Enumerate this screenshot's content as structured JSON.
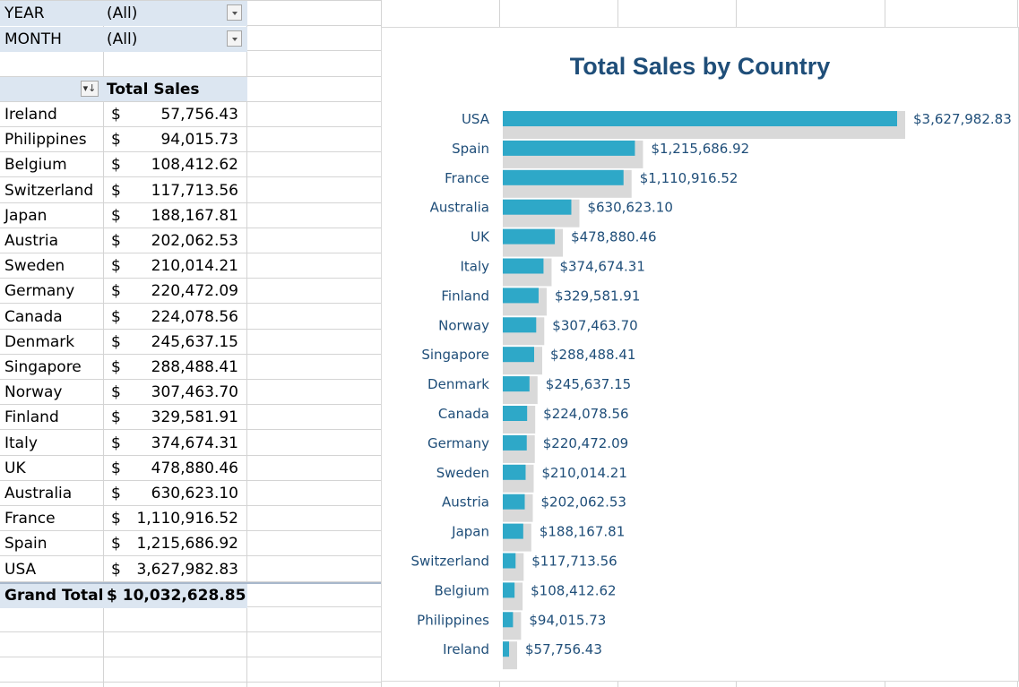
{
  "filters": [
    {
      "label": "YEAR",
      "value": "(All)"
    },
    {
      "label": "MONTH",
      "value": "(All)"
    }
  ],
  "pivot": {
    "header": "Total Sales",
    "sort_icon": "sort-filter-icon",
    "currency": "$",
    "rows": [
      {
        "country": "Ireland",
        "amount": "57,756.43"
      },
      {
        "country": "Philippines",
        "amount": "94,015.73"
      },
      {
        "country": "Belgium",
        "amount": "108,412.62"
      },
      {
        "country": "Switzerland",
        "amount": "117,713.56"
      },
      {
        "country": "Japan",
        "amount": "188,167.81"
      },
      {
        "country": "Austria",
        "amount": "202,062.53"
      },
      {
        "country": "Sweden",
        "amount": "210,014.21"
      },
      {
        "country": "Germany",
        "amount": "220,472.09"
      },
      {
        "country": "Canada",
        "amount": "224,078.56"
      },
      {
        "country": "Denmark",
        "amount": "245,637.15"
      },
      {
        "country": "Singapore",
        "amount": "288,488.41"
      },
      {
        "country": "Norway",
        "amount": "307,463.70"
      },
      {
        "country": "Finland",
        "amount": "329,581.91"
      },
      {
        "country": "Italy",
        "amount": "374,674.31"
      },
      {
        "country": "UK",
        "amount": "478,880.46"
      },
      {
        "country": "Australia",
        "amount": "630,623.10"
      },
      {
        "country": "France",
        "amount": "1,110,916.52"
      },
      {
        "country": "Spain",
        "amount": "1,215,686.92"
      },
      {
        "country": "USA",
        "amount": "3,627,982.83"
      }
    ],
    "grand_total_label": "Grand Total",
    "grand_total_value": "$ 10,032,628.85"
  },
  "colors": {
    "bar": "#2ea8c8",
    "bar_shadow": "#d9d9d9",
    "label_text": "#1f4e79",
    "filter_bg": "#dce6f1"
  },
  "chart_data": {
    "type": "bar",
    "orientation": "horizontal",
    "title": "Total Sales by Country",
    "categories": [
      "USA",
      "Spain",
      "France",
      "Australia",
      "UK",
      "Italy",
      "Finland",
      "Norway",
      "Singapore",
      "Denmark",
      "Canada",
      "Germany",
      "Sweden",
      "Austria",
      "Japan",
      "Switzerland",
      "Belgium",
      "Philippines",
      "Ireland"
    ],
    "values": [
      3627982.83,
      1215686.92,
      1110916.52,
      630623.1,
      478880.46,
      374674.31,
      329581.91,
      307463.7,
      288488.41,
      245637.15,
      224078.56,
      220472.09,
      210014.21,
      202062.53,
      188167.81,
      117713.56,
      108412.62,
      94015.73,
      57756.43
    ],
    "data_labels": [
      "$3,627,982.83",
      "$1,215,686.92",
      "$1,110,916.52",
      "$630,623.10",
      "$478,880.46",
      "$374,674.31",
      "$329,581.91",
      "$307,463.70",
      "$288,488.41",
      "$245,637.15",
      "$224,078.56",
      "$220,472.09",
      "$210,014.21",
      "$202,062.53",
      "$188,167.81",
      "$117,713.56",
      "$108,412.62",
      "$94,015.73",
      "$57,756.43"
    ],
    "xlabel": "",
    "ylabel": "",
    "grid": false,
    "legend": "none"
  }
}
